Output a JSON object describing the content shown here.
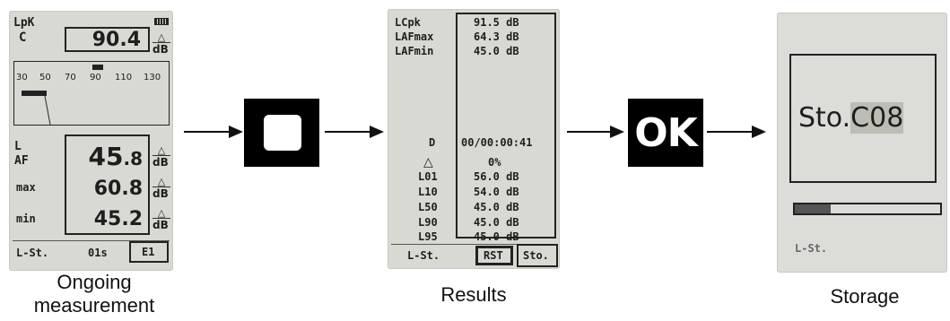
{
  "screen1": {
    "caption_line1": "Ongoing",
    "caption_line2": "measurement",
    "lpk_label": "LpK",
    "c_label": "C",
    "lpk_value": "90.4",
    "unit": "dB",
    "scale_ticks": [
      "30",
      "50",
      "70",
      "90",
      "110",
      "130"
    ],
    "l_label": "L",
    "af_label": "AF",
    "af_value_main": "45",
    "af_value_dec": ".8",
    "max_label": "max",
    "max_value": "60.8",
    "min_label": "min",
    "min_value": "45.2",
    "footer_left": "L-St.",
    "footer_mid": "01s",
    "footer_right": "E1"
  },
  "screen2": {
    "caption": "Results",
    "rows_top": [
      {
        "label": "LCpk",
        "value": "91.5 dB"
      },
      {
        "label": "LAFmax",
        "value": "64.3 dB"
      },
      {
        "label": "LAFmin",
        "value": "45.0 dB"
      }
    ],
    "d_label": "D",
    "d_value": "00/00:00:41",
    "delta_value": "0%",
    "rows_bottom": [
      {
        "label": "L01",
        "value": "56.0 dB"
      },
      {
        "label": "L10",
        "value": "54.0 dB"
      },
      {
        "label": "L50",
        "value": "45.0 dB"
      },
      {
        "label": "L90",
        "value": "45.0 dB"
      },
      {
        "label": "L95",
        "value": "45.0 dB"
      }
    ],
    "footer_left": "L-St.",
    "rst_button": "RST",
    "sto_button": "Sto."
  },
  "key_ok": "OK",
  "screen3": {
    "caption": "Storage",
    "sto_prefix": "Sto.",
    "sto_code": "C08",
    "footer_left": "L-St."
  },
  "colors": {
    "lcd": "#d9d9d3",
    "key": "#000000",
    "highlight": "#bdbdb6"
  }
}
